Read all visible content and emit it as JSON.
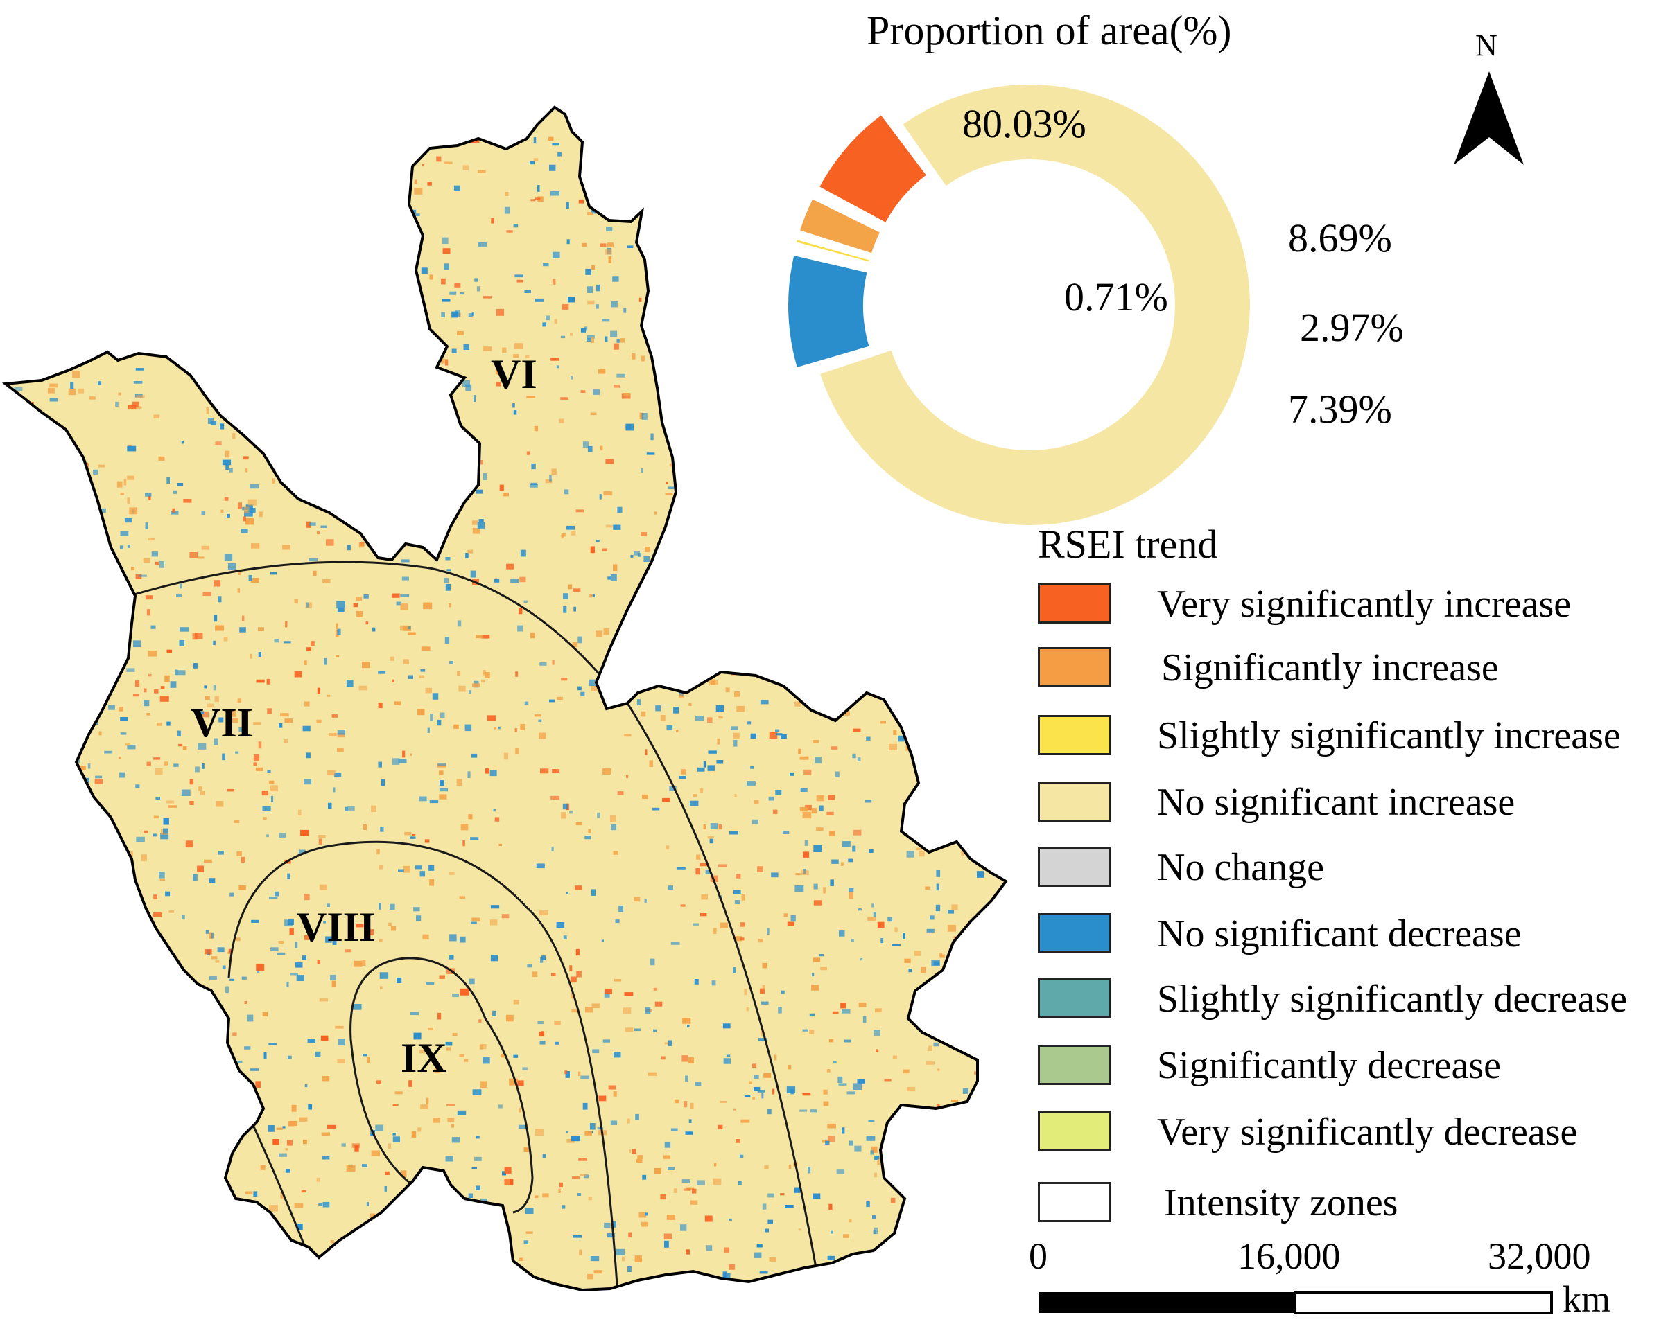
{
  "donut": {
    "title": "Proportion of area(%)",
    "segments": [
      {
        "name": "No significant increase",
        "value": 80.03,
        "label": "80.03%",
        "color": "#f5e6a3"
      },
      {
        "name": "No significant decrease",
        "value": 8.69,
        "label": "8.69%",
        "color": "#2a8ecd"
      },
      {
        "name": "Slightly significantly increase",
        "value": 0.71,
        "label": "0.71%",
        "color": "#f9dd47"
      },
      {
        "name": "Significantly increase",
        "value": 2.97,
        "label": "2.97%",
        "color": "#f3a348"
      },
      {
        "name": "Very significantly increase",
        "value": 7.39,
        "label": "7.39%",
        "color": "#f76121"
      }
    ]
  },
  "zones": [
    "VI",
    "VII",
    "VIII",
    "IX"
  ],
  "north_arrow": {
    "label": "N"
  },
  "legend": {
    "title": "RSEI trend",
    "items": [
      {
        "label": "Very significantly increase",
        "color": "#f76121"
      },
      {
        "label": "Significantly increase",
        "color": "#f59d45"
      },
      {
        "label": "Slightly significantly increase",
        "color": "#fbe34c"
      },
      {
        "label": "No significant increase",
        "color": "#f5e6a3"
      },
      {
        "label": "No change",
        "color": "#d4d4d4"
      },
      {
        "label": "No significant decrease",
        "color": "#2a8ecd"
      },
      {
        "label": "Slightly significantly decrease",
        "color": "#5fa9aa"
      },
      {
        "label": "Significantly decrease",
        "color": "#a9c98f"
      },
      {
        "label": "Very significantly decrease",
        "color": "#e2ec79"
      },
      {
        "label": "Intensity zones",
        "color": "#ffffff"
      }
    ]
  },
  "scale_bar": {
    "ticks": [
      "0",
      "16,000",
      "32,000"
    ],
    "unit": "km"
  },
  "colors": {
    "background_map": "#f5e6a3",
    "decrease": "#2a8ecd",
    "increase": "#f3a348",
    "strong_increase": "#f76121"
  }
}
